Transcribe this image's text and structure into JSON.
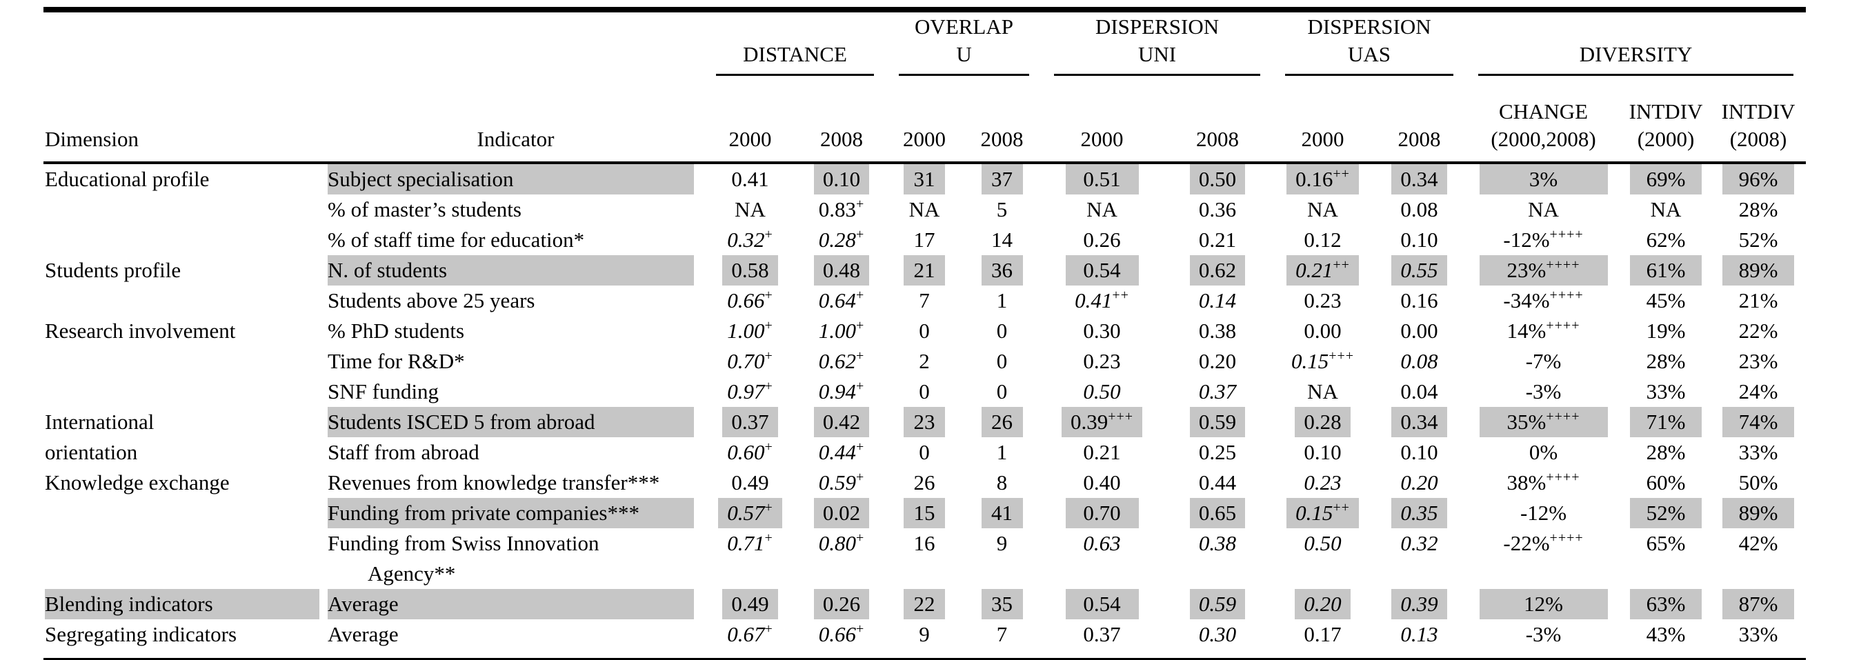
{
  "colors": {
    "highlight": "#c6c6c6",
    "text": "#000000",
    "background": "#ffffff"
  },
  "header": {
    "dimension": "Dimension",
    "indicator": "Indicator",
    "groups": [
      {
        "label": "DISTANCE",
        "subs": [
          "2000",
          "2008"
        ]
      },
      {
        "label": "OVERLAP\nU",
        "subs": [
          "2000",
          "2008"
        ]
      },
      {
        "label": "DISPERSION\nUNI",
        "subs": [
          "2000",
          "2008"
        ]
      },
      {
        "label": "DISPERSION\nUAS",
        "subs": [
          "2000",
          "2008"
        ]
      },
      {
        "label": "DIVERSITY",
        "subs": [
          "CHANGE\n(2000,2008)",
          "INTDIV\n(2000)",
          "INTDIV\n(2008)"
        ]
      }
    ]
  },
  "table": {
    "rows": [
      {
        "dim": "Educational profile",
        "ind_lines": [
          "Subject specialisation"
        ],
        "ind_shaded": true,
        "cells": [
          {
            "v": "0.41"
          },
          {
            "v": "0.10",
            "sh": 1
          },
          {
            "v": "31",
            "sh": 1
          },
          {
            "v": "37",
            "sh": 1
          },
          {
            "v": "0.51",
            "sh": 1
          },
          {
            "v": "0.50",
            "sh": 1
          },
          {
            "v": "0.16",
            "sup": "++",
            "sh": 1
          },
          {
            "v": "0.34",
            "sh": 1
          },
          {
            "v": "3%",
            "sh": 1
          },
          {
            "v": "69%",
            "sh": 1
          },
          {
            "v": "96%",
            "sh": 1
          }
        ]
      },
      {
        "dim": "",
        "ind_lines": [
          "% of master’s students"
        ],
        "cells": [
          {
            "v": "NA"
          },
          {
            "v": "0.83",
            "sup": "+"
          },
          {
            "v": "NA"
          },
          {
            "v": "5"
          },
          {
            "v": "NA"
          },
          {
            "v": "0.36"
          },
          {
            "v": "NA"
          },
          {
            "v": "0.08"
          },
          {
            "v": "NA"
          },
          {
            "v": "NA"
          },
          {
            "v": "28%"
          }
        ]
      },
      {
        "dim": "",
        "ind_lines": [
          "% of staff time for education*"
        ],
        "cells": [
          {
            "v": "0.32",
            "sup": "+",
            "it": 1
          },
          {
            "v": "0.28",
            "sup": "+",
            "it": 1
          },
          {
            "v": "17"
          },
          {
            "v": "14"
          },
          {
            "v": "0.26"
          },
          {
            "v": "0.21"
          },
          {
            "v": "0.12"
          },
          {
            "v": "0.10"
          },
          {
            "v": "-12%",
            "sup": "++++"
          },
          {
            "v": "62%"
          },
          {
            "v": "52%"
          }
        ]
      },
      {
        "dim": "Students profile",
        "ind_lines": [
          "N. of students"
        ],
        "ind_shaded": true,
        "cells": [
          {
            "v": "0.58",
            "sh": 1
          },
          {
            "v": "0.48",
            "sh": 1
          },
          {
            "v": "21",
            "sh": 1
          },
          {
            "v": "36",
            "sh": 1
          },
          {
            "v": "0.54",
            "sh": 1
          },
          {
            "v": "0.62",
            "sh": 1
          },
          {
            "v": "0.21",
            "sup": "++",
            "it": 1,
            "sh": 1
          },
          {
            "v": "0.55",
            "it": 1,
            "sh": 1
          },
          {
            "v": "23%",
            "sup": "++++",
            "sh": 1
          },
          {
            "v": "61%",
            "sh": 1
          },
          {
            "v": "89%",
            "sh": 1
          }
        ]
      },
      {
        "dim": "",
        "ind_lines": [
          "Students above 25 years"
        ],
        "cells": [
          {
            "v": "0.66",
            "sup": "+",
            "it": 1
          },
          {
            "v": "0.64",
            "sup": "+",
            "it": 1
          },
          {
            "v": "7"
          },
          {
            "v": "1"
          },
          {
            "v": "0.41",
            "sup": "++",
            "it": 1
          },
          {
            "v": "0.14",
            "it": 1
          },
          {
            "v": "0.23"
          },
          {
            "v": "0.16"
          },
          {
            "v": "-34%",
            "sup": "++++"
          },
          {
            "v": "45%"
          },
          {
            "v": "21%"
          }
        ]
      },
      {
        "dim": "Research involvement",
        "ind_lines": [
          "% PhD students"
        ],
        "cells": [
          {
            "v": "1.00",
            "sup": "+",
            "it": 1
          },
          {
            "v": "1.00",
            "sup": "+",
            "it": 1
          },
          {
            "v": "0"
          },
          {
            "v": "0"
          },
          {
            "v": "0.30"
          },
          {
            "v": "0.38"
          },
          {
            "v": "0.00"
          },
          {
            "v": "0.00"
          },
          {
            "v": "14%",
            "sup": "++++"
          },
          {
            "v": "19%"
          },
          {
            "v": "22%"
          }
        ]
      },
      {
        "dim": "",
        "ind_lines": [
          "Time for R&D*"
        ],
        "cells": [
          {
            "v": "0.70",
            "sup": "+",
            "it": 1
          },
          {
            "v": "0.62",
            "sup": "+",
            "it": 1
          },
          {
            "v": "2"
          },
          {
            "v": "0"
          },
          {
            "v": "0.23"
          },
          {
            "v": "0.20"
          },
          {
            "v": "0.15",
            "sup": "+++",
            "it": 1
          },
          {
            "v": "0.08",
            "it": 1
          },
          {
            "v": "-7%"
          },
          {
            "v": "28%"
          },
          {
            "v": "23%"
          }
        ]
      },
      {
        "dim": "",
        "ind_lines": [
          "SNF funding"
        ],
        "cells": [
          {
            "v": "0.97",
            "sup": "+",
            "it": 1
          },
          {
            "v": "0.94",
            "sup": "+",
            "it": 1
          },
          {
            "v": "0"
          },
          {
            "v": "0"
          },
          {
            "v": "0.50",
            "it": 1
          },
          {
            "v": "0.37",
            "it": 1
          },
          {
            "v": "NA"
          },
          {
            "v": "0.04"
          },
          {
            "v": "-3%"
          },
          {
            "v": "33%"
          },
          {
            "v": "24%"
          }
        ]
      },
      {
        "dim": "International",
        "ind_lines": [
          "Students ISCED 5 from abroad"
        ],
        "ind_shaded": true,
        "cells": [
          {
            "v": "0.37",
            "sh": 1
          },
          {
            "v": "0.42",
            "sh": 1
          },
          {
            "v": "23",
            "sh": 1
          },
          {
            "v": "26",
            "sh": 1
          },
          {
            "v": "0.39",
            "sup": "+++",
            "sh": 1
          },
          {
            "v": "0.59",
            "sh": 1
          },
          {
            "v": "0.28",
            "sh": 1
          },
          {
            "v": "0.34",
            "sh": 1
          },
          {
            "v": "35%",
            "sup": "++++",
            "sh": 1
          },
          {
            "v": "71%",
            "sh": 1
          },
          {
            "v": "74%",
            "sh": 1
          }
        ]
      },
      {
        "dim": "orientation",
        "dim_indent": true,
        "ind_lines": [
          "Staff from abroad"
        ],
        "cells": [
          {
            "v": "0.60",
            "sup": "+",
            "it": 1
          },
          {
            "v": "0.44",
            "sup": "+",
            "it": 1
          },
          {
            "v": "0"
          },
          {
            "v": "1"
          },
          {
            "v": "0.21"
          },
          {
            "v": "0.25"
          },
          {
            "v": "0.10"
          },
          {
            "v": "0.10"
          },
          {
            "v": "0%"
          },
          {
            "v": "28%"
          },
          {
            "v": "33%"
          }
        ]
      },
      {
        "dim": "Knowledge exchange",
        "ind_lines": [
          "Revenues from knowledge transfer***"
        ],
        "cells": [
          {
            "v": "0.49"
          },
          {
            "v": "0.59",
            "sup": "+",
            "it": 1
          },
          {
            "v": "26"
          },
          {
            "v": "8"
          },
          {
            "v": "0.40"
          },
          {
            "v": "0.44"
          },
          {
            "v": "0.23",
            "it": 1
          },
          {
            "v": "0.20",
            "it": 1
          },
          {
            "v": "38%",
            "sup": "++++"
          },
          {
            "v": "60%"
          },
          {
            "v": "50%"
          }
        ]
      },
      {
        "dim": "",
        "ind_lines": [
          "Funding from private companies***"
        ],
        "ind_shaded": true,
        "cells": [
          {
            "v": "0.57",
            "sup": "+",
            "it": 1,
            "sh": 1
          },
          {
            "v": "0.02",
            "sh": 1
          },
          {
            "v": "15",
            "sh": 1
          },
          {
            "v": "41",
            "sh": 1
          },
          {
            "v": "0.70",
            "sh": 1
          },
          {
            "v": "0.65",
            "sh": 1
          },
          {
            "v": "0.15",
            "sup": "++",
            "it": 1,
            "sh": 1
          },
          {
            "v": "0.35",
            "it": 1,
            "sh": 1
          },
          {
            "v": "-12%"
          },
          {
            "v": "52%",
            "sh": 1
          },
          {
            "v": "89%",
            "sh": 1
          }
        ]
      },
      {
        "dim": "",
        "ind_lines": [
          "Funding from Swiss Innovation",
          "Agency**"
        ],
        "cells": [
          {
            "v": "0.71",
            "sup": "+",
            "it": 1
          },
          {
            "v": "0.80",
            "sup": "+",
            "it": 1
          },
          {
            "v": "16"
          },
          {
            "v": "9"
          },
          {
            "v": "0.63",
            "it": 1
          },
          {
            "v": "0.38",
            "it": 1
          },
          {
            "v": "0.50",
            "it": 1
          },
          {
            "v": "0.32",
            "it": 1
          },
          {
            "v": "-22%",
            "sup": "++++"
          },
          {
            "v": "65%"
          },
          {
            "v": "42%"
          }
        ]
      },
      {
        "dim": "Blending indicators",
        "dim_shaded": true,
        "ind_lines": [
          "Average"
        ],
        "ind_shaded": true,
        "cells": [
          {
            "v": "0.49",
            "sh": 1
          },
          {
            "v": "0.26",
            "sh": 1
          },
          {
            "v": "22",
            "sh": 1
          },
          {
            "v": "35",
            "sh": 1
          },
          {
            "v": "0.54",
            "sh": 1
          },
          {
            "v": "0.59",
            "it": 1,
            "sh": 1
          },
          {
            "v": "0.20",
            "it": 1,
            "sh": 1
          },
          {
            "v": "0.39",
            "it": 1,
            "sh": 1
          },
          {
            "v": "12%",
            "sh": 1
          },
          {
            "v": "63%",
            "sh": 1
          },
          {
            "v": "87%",
            "sh": 1
          }
        ]
      },
      {
        "dim": "Segregating indicators",
        "ind_lines": [
          "Average"
        ],
        "cells": [
          {
            "v": "0.67",
            "sup": "+",
            "it": 1
          },
          {
            "v": "0.66",
            "sup": "+",
            "it": 1
          },
          {
            "v": "9"
          },
          {
            "v": "7"
          },
          {
            "v": "0.37"
          },
          {
            "v": "0.30",
            "it": 1
          },
          {
            "v": "0.17"
          },
          {
            "v": "0.13",
            "it": 1
          },
          {
            "v": "-3%"
          },
          {
            "v": "43%"
          },
          {
            "v": "33%"
          }
        ]
      }
    ]
  }
}
